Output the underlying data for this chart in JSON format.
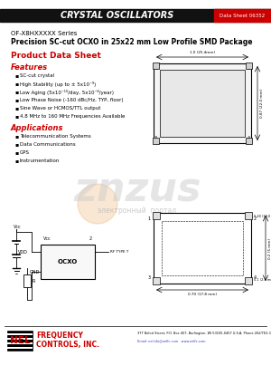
{
  "header_text": "CRYSTAL OSCILLATORS",
  "header_bg": "#111111",
  "header_text_color": "#ffffff",
  "datasheet_label": "Data Sheet 06352",
  "datasheet_bg": "#cc0000",
  "title_line1": "OF-X8HXXXXX Series",
  "title_line2": "Precision SC-cut OCXO in 25x22 mm Low Profile SMD Package",
  "product_data_sheet": "Product Data Sheet",
  "features_title": "Features",
  "features": [
    "SC-cut crystal",
    "High Stability (up to ± 5x10⁻⁹)",
    "Low Aging (5x10⁻¹⁰/day, 5x10⁻⁸/year)",
    "Low Phase Noise (-160 dBc/Hz, TYP, floor)",
    "Sine Wave or HCMOS/TTL output",
    "4.8 MHz to 160 MHz Frequencies Available"
  ],
  "applications_title": "Applications",
  "applications": [
    "Telecommunication Systems",
    "Data Communications",
    "GPS",
    "Instrumentation"
  ],
  "nel_text": "NEL",
  "nel_freq": "FREQUENCY",
  "nel_controls": "CONTROLS, INC.",
  "footer_address": "377 Beloit Street, P.O. Box 457, Burlington, WI 53105-0457 U.S.A. Phone 262/763-3591 FAX 262/763-2881",
  "footer_email": "Email: nelinfo@nelfc.com   www.nelfc.com",
  "watermark_text": "znzus",
  "watermark_sub": "электронный  портал",
  "red_accent": "#cc0000",
  "bg_color": "#ffffff"
}
